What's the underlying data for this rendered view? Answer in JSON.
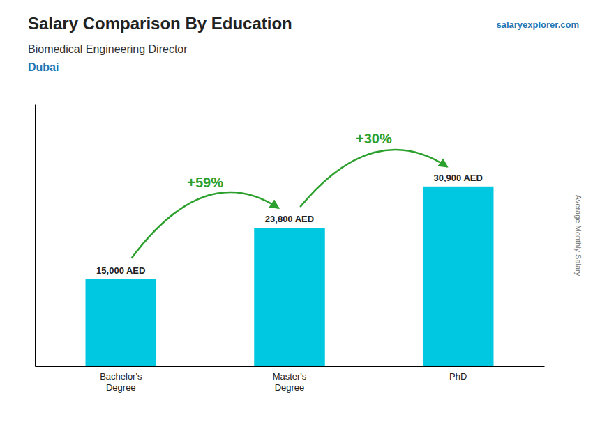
{
  "chart_data": {
    "type": "bar",
    "title": "Salary Comparison By Education",
    "subtitle": "Biomedical Engineering Director",
    "annotations": [
      "Dubai",
      "salaryexplorer.com"
    ],
    "y_label": "Average Monthly Salary",
    "categories": [
      "Bachelor's\nDegree",
      "Master's\nDegree",
      "PhD"
    ],
    "values": [
      15000,
      23800,
      30900
    ],
    "value_labels": [
      "15,000 AED",
      "23,800 AED",
      "30,900 AED"
    ],
    "data_labels": true,
    "arrow_labels": [
      "+59%",
      "+30%"
    ],
    "color": "#00c8e0",
    "ylim": [
      0,
      45000
    ],
    "yticks": [],
    "tick_labels": "x"
  }
}
